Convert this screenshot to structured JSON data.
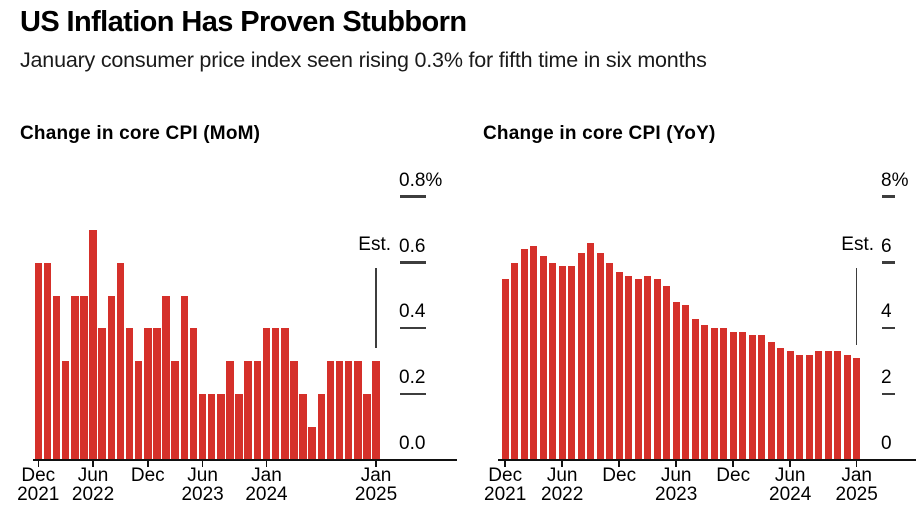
{
  "header": {
    "title": "US Inflation Has Proven Stubborn",
    "subtitle": "January consumer price index seen rising 0.3% for fifth time in six months"
  },
  "colors": {
    "bar_red": "#d5302a",
    "baseline": "#111111",
    "tick_dash": "#3d3d3d",
    "text": "#000000"
  },
  "chart_data": [
    {
      "type": "bar",
      "title": "Change in core CPI (MoM)",
      "ylabel": "",
      "xlabel": "",
      "ylim": [
        0,
        0.8
      ],
      "grid": "off",
      "legend_position": "none",
      "axis_side": "right",
      "categories": [
        "Dec 2021",
        "Jan 2022",
        "Feb 2022",
        "Mar 2022",
        "Apr 2022",
        "May 2022",
        "Jun 2022",
        "Jul 2022",
        "Aug 2022",
        "Sep 2022",
        "Oct 2022",
        "Nov 2022",
        "Dec 2022",
        "Jan 2023",
        "Feb 2023",
        "Mar 2023",
        "Apr 2023",
        "May 2023",
        "Jun 2023",
        "Jul 2023",
        "Aug 2023",
        "Sep 2023",
        "Oct 2023",
        "Nov 2023",
        "Dec 2023",
        "Jan 2024",
        "Feb 2024",
        "Mar 2024",
        "Apr 2024",
        "May 2024",
        "Jun 2024",
        "Jul 2024",
        "Aug 2024",
        "Sep 2024",
        "Oct 2024",
        "Nov 2024",
        "Dec 2024",
        "Jan 2025"
      ],
      "values": [
        0.6,
        0.6,
        0.5,
        0.3,
        0.5,
        0.5,
        0.7,
        0.4,
        0.5,
        0.6,
        0.4,
        0.3,
        0.4,
        0.4,
        0.5,
        0.3,
        0.5,
        0.4,
        0.2,
        0.2,
        0.2,
        0.3,
        0.2,
        0.3,
        0.3,
        0.4,
        0.4,
        0.4,
        0.3,
        0.2,
        0.1,
        0.2,
        0.3,
        0.3,
        0.3,
        0.3,
        0.2,
        0.3
      ],
      "y_ticks": [
        {
          "label": "0.8%",
          "value": 0.8
        },
        {
          "label": "0.6",
          "value": 0.6
        },
        {
          "label": "0.4",
          "value": 0.4
        },
        {
          "label": "0.2",
          "value": 0.2
        },
        {
          "label": "0.0",
          "value": 0.0
        }
      ],
      "x_ticks": [
        {
          "category_index": 0,
          "line1": "Dec",
          "line2": "2021"
        },
        {
          "category_index": 6,
          "line1": "Jun",
          "line2": "2022"
        },
        {
          "category_index": 12,
          "line1": "Dec",
          "line2": ""
        },
        {
          "category_index": 18,
          "line1": "Jun",
          "line2": "2023"
        },
        {
          "category_index": 25,
          "line1": "Jan",
          "line2": "2024"
        },
        {
          "category_index": 37,
          "line1": "Jan",
          "line2": "2025"
        }
      ],
      "est": {
        "label": "Est.",
        "category_index": 37,
        "value": 0.3
      }
    },
    {
      "type": "bar",
      "title": "Change in core CPI (YoY)",
      "ylabel": "",
      "xlabel": "",
      "ylim": [
        0,
        8
      ],
      "grid": "off",
      "legend_position": "none",
      "axis_side": "right",
      "categories": [
        "Dec 2021",
        "Jan 2022",
        "Feb 2022",
        "Mar 2022",
        "Apr 2022",
        "May 2022",
        "Jun 2022",
        "Jul 2022",
        "Aug 2022",
        "Sep 2022",
        "Oct 2022",
        "Nov 2022",
        "Dec 2022",
        "Jan 2023",
        "Feb 2023",
        "Mar 2023",
        "Apr 2023",
        "May 2023",
        "Jun 2023",
        "Jul 2023",
        "Aug 2023",
        "Sep 2023",
        "Oct 2023",
        "Nov 2023",
        "Dec 2023",
        "Jan 2024",
        "Feb 2024",
        "Mar 2024",
        "Apr 2024",
        "May 2024",
        "Jun 2024",
        "Jul 2024",
        "Aug 2024",
        "Sep 2024",
        "Oct 2024",
        "Nov 2024",
        "Dec 2024",
        "Jan 2025"
      ],
      "values": [
        5.5,
        6.0,
        6.4,
        6.5,
        6.2,
        6.0,
        5.9,
        5.9,
        6.3,
        6.6,
        6.3,
        6.0,
        5.7,
        5.6,
        5.5,
        5.6,
        5.5,
        5.3,
        4.8,
        4.7,
        4.3,
        4.1,
        4.0,
        4.0,
        3.9,
        3.9,
        3.8,
        3.8,
        3.6,
        3.4,
        3.3,
        3.2,
        3.2,
        3.3,
        3.3,
        3.3,
        3.2,
        3.1
      ],
      "y_ticks": [
        {
          "label": "8%",
          "value": 8
        },
        {
          "label": "6",
          "value": 6
        },
        {
          "label": "4",
          "value": 4
        },
        {
          "label": "2",
          "value": 2
        },
        {
          "label": "0",
          "value": 0
        }
      ],
      "x_ticks": [
        {
          "category_index": 0,
          "line1": "Dec",
          "line2": "2021"
        },
        {
          "category_index": 6,
          "line1": "Jun",
          "line2": "2022"
        },
        {
          "category_index": 12,
          "line1": "Dec",
          "line2": ""
        },
        {
          "category_index": 18,
          "line1": "Jun",
          "line2": "2023"
        },
        {
          "category_index": 24,
          "line1": "Dec",
          "line2": ""
        },
        {
          "category_index": 30,
          "line1": "Jun",
          "line2": "2024"
        },
        {
          "category_index": 37,
          "line1": "Jan",
          "line2": "2025"
        }
      ],
      "est": {
        "label": "Est.",
        "category_index": 37,
        "value": 3.1
      }
    }
  ]
}
